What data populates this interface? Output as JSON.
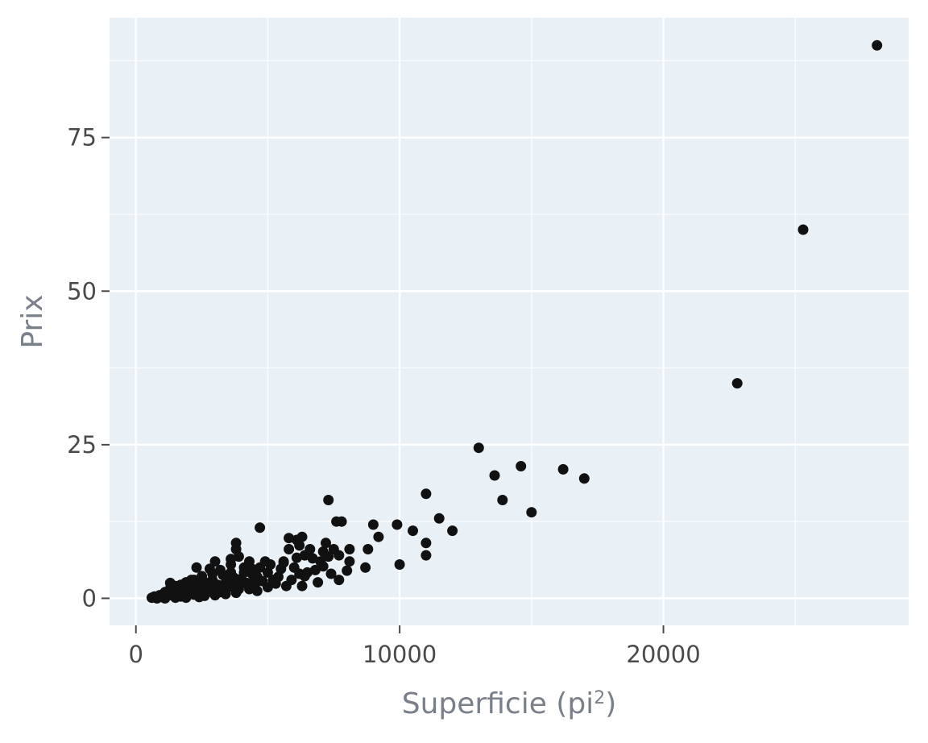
{
  "chart_data": {
    "type": "scatter",
    "xlabel": "Superficie (pi",
    "xlabel_sup": "2",
    "xlabel_tail": ")",
    "ylabel": "Prix",
    "xlim": [
      -1000,
      29300
    ],
    "ylim": [
      -4.4,
      94.5
    ],
    "x_ticks": [
      0,
      10000,
      20000
    ],
    "x_tick_labels": [
      "0",
      "10000",
      "20000"
    ],
    "y_ticks": [
      0,
      25,
      50,
      75
    ],
    "y_tick_labels": [
      "0",
      "25",
      "50",
      "75"
    ],
    "x_minor_ticks": [
      5000,
      15000,
      25000
    ],
    "y_minor_ticks": [
      12.5,
      37.5,
      62.5,
      87.5
    ],
    "grid": true,
    "background": "#eaf1f6",
    "point_color": "#111111",
    "series": [
      {
        "points": [
          [
            28100,
            90
          ],
          [
            25300,
            60
          ],
          [
            22800,
            35
          ],
          [
            13000,
            24.5
          ],
          [
            14600,
            21.5
          ],
          [
            16200,
            21
          ],
          [
            13600,
            20
          ],
          [
            17000,
            19.5
          ],
          [
            11000,
            17
          ],
          [
            13900,
            16
          ],
          [
            15000,
            14
          ],
          [
            11500,
            13
          ],
          [
            12000,
            11
          ],
          [
            10500,
            11
          ],
          [
            11000,
            9
          ],
          [
            11000,
            7
          ],
          [
            10000,
            5.5
          ],
          [
            9900,
            12
          ],
          [
            9200,
            10
          ],
          [
            9000,
            12
          ],
          [
            8800,
            8
          ],
          [
            8700,
            5
          ],
          [
            8100,
            8
          ],
          [
            8100,
            6
          ],
          [
            8000,
            4.5
          ],
          [
            7300,
            16
          ],
          [
            7600,
            12.5
          ],
          [
            7800,
            12.5
          ],
          [
            7200,
            9
          ],
          [
            7500,
            8
          ],
          [
            7700,
            7
          ],
          [
            7000,
            6
          ],
          [
            7400,
            4
          ],
          [
            7700,
            3
          ],
          [
            6300,
            10
          ],
          [
            6100,
            9.5
          ],
          [
            6600,
            8
          ],
          [
            6000,
            5
          ],
          [
            6200,
            4
          ],
          [
            6300,
            2
          ],
          [
            5800,
            8
          ],
          [
            5600,
            6
          ],
          [
            5400,
            3.5
          ],
          [
            5700,
            2
          ],
          [
            4700,
            11.5
          ],
          [
            4700,
            5
          ],
          [
            4500,
            3
          ],
          [
            4300,
            1.5
          ],
          [
            3800,
            9
          ],
          [
            3800,
            8
          ],
          [
            3600,
            5.5
          ],
          [
            3500,
            3
          ],
          [
            3300,
            1.5
          ],
          [
            3000,
            6
          ],
          [
            2900,
            4
          ],
          [
            2700,
            2
          ],
          [
            2300,
            5
          ],
          [
            2200,
            3
          ],
          [
            2000,
            1.5
          ],
          [
            1800,
            1
          ],
          [
            1500,
            0.8
          ],
          [
            1300,
            2.5
          ],
          [
            1100,
            1
          ],
          [
            900,
            0.5
          ],
          [
            700,
            0.3
          ],
          [
            600,
            0.1
          ],
          [
            800,
            0
          ],
          [
            1000,
            0.2
          ],
          [
            1200,
            0.4
          ],
          [
            1400,
            0.5
          ],
          [
            1600,
            0.7
          ],
          [
            1700,
            0.3
          ],
          [
            1900,
            0.9
          ],
          [
            2100,
            1.2
          ],
          [
            2400,
            1.4
          ],
          [
            2500,
            0.8
          ],
          [
            2600,
            1.7
          ],
          [
            2800,
            1.1
          ],
          [
            3100,
            2.2
          ],
          [
            3200,
            1.0
          ],
          [
            3400,
            2.5
          ],
          [
            3700,
            2.0
          ],
          [
            3900,
            1.5
          ],
          [
            4000,
            3.2
          ],
          [
            4200,
            2.5
          ],
          [
            4400,
            4.0
          ],
          [
            4600,
            3.5
          ],
          [
            4800,
            2.8
          ],
          [
            5000,
            4.2
          ],
          [
            5200,
            3.0
          ],
          [
            5100,
            5.5
          ],
          [
            4900,
            6.0
          ],
          [
            4100,
            5.0
          ],
          [
            3600,
            4.2
          ],
          [
            3300,
            3.8
          ],
          [
            2900,
            3.0
          ],
          [
            2600,
            2.6
          ],
          [
            2300,
            2.2
          ],
          [
            2000,
            2.0
          ],
          [
            1800,
            1.8
          ],
          [
            1600,
            1.5
          ],
          [
            1400,
            1.2
          ],
          [
            1200,
            1.0
          ],
          [
            2200,
            0.6
          ],
          [
            2700,
            1.0
          ],
          [
            3000,
            1.4
          ],
          [
            3500,
            1.8
          ],
          [
            4000,
            2.4
          ],
          [
            4500,
            2.0
          ],
          [
            5300,
            2.4
          ],
          [
            5900,
            3.0
          ],
          [
            6400,
            3.6
          ],
          [
            6800,
            4.6
          ],
          [
            7100,
            5.2
          ],
          [
            6700,
            6.5
          ],
          [
            6400,
            7.0
          ],
          [
            6900,
            2.6
          ],
          [
            5500,
            4.8
          ],
          [
            5000,
            1.8
          ],
          [
            4600,
            1.2
          ],
          [
            3800,
            0.9
          ],
          [
            3400,
            0.7
          ],
          [
            3000,
            0.5
          ],
          [
            2600,
            0.4
          ],
          [
            2400,
            0.2
          ],
          [
            1900,
            0.1
          ],
          [
            1500,
            0.1
          ],
          [
            1100,
            0.0
          ],
          [
            3900,
            6.8
          ],
          [
            4300,
            6.0
          ],
          [
            3600,
            6.4
          ],
          [
            3200,
            4.6
          ],
          [
            2800,
            4.8
          ],
          [
            2500,
            3.6
          ],
          [
            2100,
            3.0
          ],
          [
            1900,
            2.6
          ],
          [
            1700,
            2.2
          ],
          [
            1500,
            2.0
          ],
          [
            1300,
            1.6
          ],
          [
            3700,
            3.4
          ],
          [
            4100,
            4.2
          ],
          [
            4400,
            4.8
          ],
          [
            5600,
            5.8
          ],
          [
            6100,
            6.6
          ],
          [
            6500,
            4.2
          ],
          [
            7300,
            6.8
          ],
          [
            7100,
            7.6
          ],
          [
            5800,
            9.8
          ],
          [
            6200,
            8.6
          ]
        ]
      }
    ]
  }
}
